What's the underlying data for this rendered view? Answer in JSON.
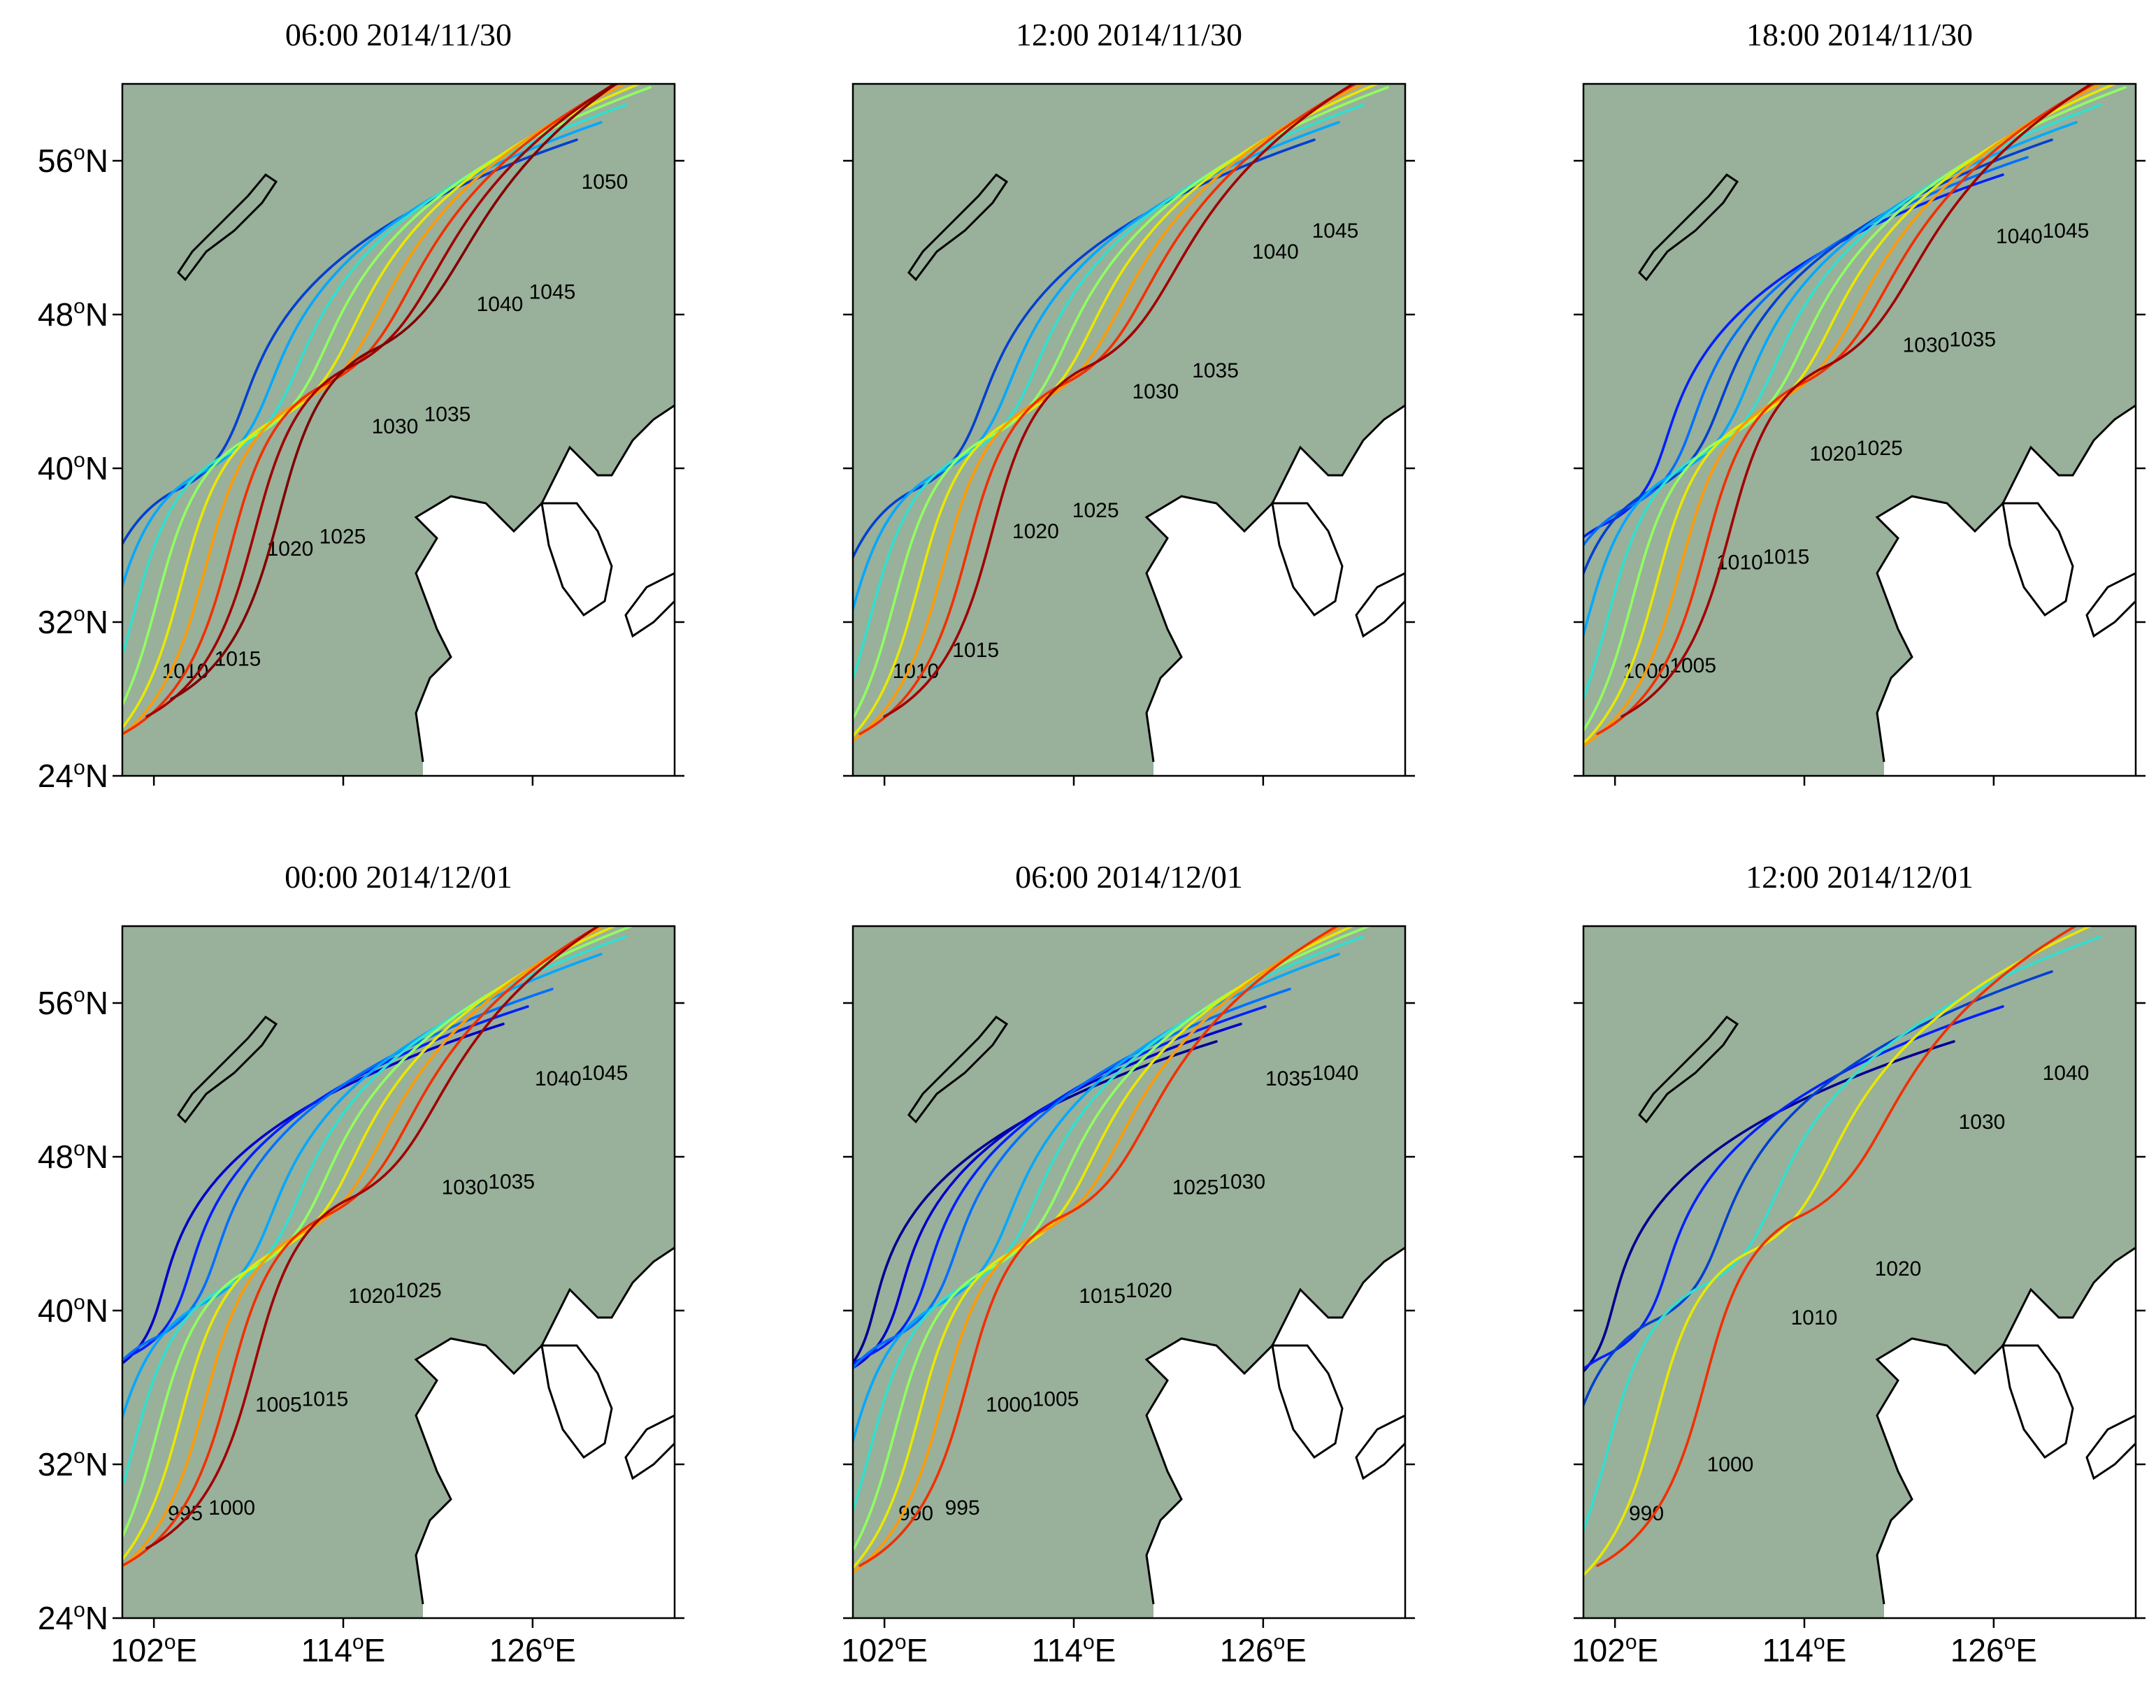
{
  "figure": {
    "panels": [
      {
        "title": "06:00 2014/11/30"
      },
      {
        "title": "12:00 2014/11/30"
      },
      {
        "title": "18:00 2014/11/30"
      },
      {
        "title": "00:00 2014/12/01"
      },
      {
        "title": "06:00 2014/12/01"
      },
      {
        "title": "12:00 2014/12/01"
      }
    ],
    "lat_ticks": [
      {
        "value": 56,
        "label": "56",
        "hem": "N"
      },
      {
        "value": 48,
        "label": "48",
        "hem": "N"
      },
      {
        "value": 40,
        "label": "40",
        "hem": "N"
      },
      {
        "value": 32,
        "label": "32",
        "hem": "N"
      },
      {
        "value": 24,
        "label": "24",
        "hem": "N"
      }
    ],
    "lon_ticks": [
      {
        "value": 102,
        "label": "102",
        "hem": "E"
      },
      {
        "value": 114,
        "label": "114",
        "hem": "E"
      },
      {
        "value": 126,
        "label": "126",
        "hem": "E"
      }
    ],
    "degree_symbol": "o",
    "land_color": "#99b09a",
    "sea_color": "#ffffff",
    "coast_color": "#000000"
  },
  "chart_data": {
    "type": "contour",
    "variable": "sea level pressure isobars",
    "lon_range_E": [
      100,
      135
    ],
    "lat_range_N": [
      24,
      60
    ],
    "isobars": [
      {
        "panel": 0,
        "levels": [
          1010,
          1015,
          1020,
          1025,
          1030,
          1035,
          1040,
          1045,
          1050
        ]
      },
      {
        "panel": 1,
        "levels": [
          1010,
          1015,
          1020,
          1025,
          1030,
          1035,
          1040,
          1045
        ]
      },
      {
        "panel": 2,
        "levels": [
          1000,
          1005,
          1010,
          1015,
          1020,
          1025,
          1030,
          1035,
          1040,
          1045
        ]
      },
      {
        "panel": 3,
        "levels": [
          995,
          1000,
          1005,
          1015,
          1020,
          1025,
          1030,
          1035,
          1040,
          1045
        ]
      },
      {
        "panel": 4,
        "levels": [
          990,
          995,
          1000,
          1005,
          1015,
          1020,
          1025,
          1030,
          1035,
          1040
        ]
      },
      {
        "panel": 5,
        "levels": [
          990,
          1000,
          1010,
          1020,
          1030,
          1040
        ]
      }
    ],
    "color_scale": [
      {
        "level": 990,
        "color": "#00008f"
      },
      {
        "level": 995,
        "color": "#0000c8"
      },
      {
        "level": 1000,
        "color": "#0020ff"
      },
      {
        "level": 1005,
        "color": "#0070ff"
      },
      {
        "level": 1010,
        "color": "#0040d0"
      },
      {
        "level": 1015,
        "color": "#00a8ff"
      },
      {
        "level": 1020,
        "color": "#30e0d0"
      },
      {
        "level": 1025,
        "color": "#90ff60"
      },
      {
        "level": 1030,
        "color": "#e8e800"
      },
      {
        "level": 1035,
        "color": "#ff9a00"
      },
      {
        "level": 1040,
        "color": "#f03000"
      },
      {
        "level": 1045,
        "color": "#a00000"
      },
      {
        "level": 1050,
        "color": "#800000"
      }
    ]
  }
}
